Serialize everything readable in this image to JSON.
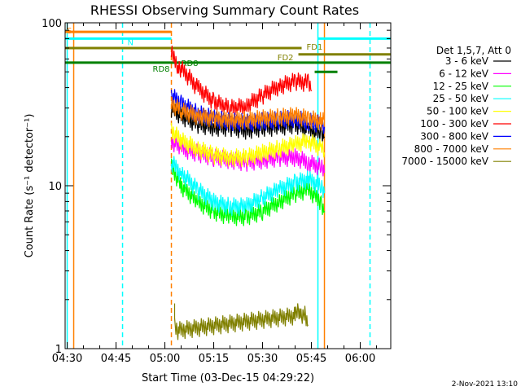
{
  "chart_data": {
    "type": "line",
    "title": "RHESSI Observing Summary Count Rates",
    "xlabel": "Start Time (03-Dec-15 04:29:22)",
    "ylabel": "Count Rate (s⁻¹ detector⁻¹)",
    "y_scale": "log",
    "ylim": [
      1,
      100
    ],
    "xlim": [
      "04:29:22",
      "06:09:22"
    ],
    "x_ticks": [
      "04:30",
      "04:45",
      "05:00",
      "05:15",
      "05:30",
      "05:45",
      "06:00"
    ],
    "y_ticks": [
      "1",
      "10",
      "100"
    ],
    "legend_header": "Det 1,5,7, Att 0",
    "legend_position": "right",
    "series": [
      {
        "name": "3 - 6 keV",
        "color": "#000000",
        "x": [
          "05:02",
          "05:05",
          "05:10",
          "05:15",
          "05:20",
          "05:25",
          "05:30",
          "05:35",
          "05:40",
          "05:44",
          "05:48",
          "05:49"
        ],
        "y": [
          30,
          27,
          24,
          23,
          23,
          22,
          23,
          23,
          24,
          22,
          21,
          20
        ]
      },
      {
        "name": "6 - 12 keV",
        "color": "#ff00ff",
        "x": [
          "05:02",
          "05:05",
          "05:10",
          "05:15",
          "05:20",
          "05:25",
          "05:30",
          "05:35",
          "05:40",
          "05:44",
          "05:48",
          "05:49"
        ],
        "y": [
          19,
          17,
          16,
          15,
          14.5,
          14,
          14.5,
          15,
          15,
          14,
          13,
          12
        ]
      },
      {
        "name": "12 - 25 keV",
        "color": "#00ff00",
        "x": [
          "05:02",
          "05:05",
          "05:10",
          "05:15",
          "05:20",
          "05:25",
          "05:30",
          "05:35",
          "05:40",
          "05:44",
          "05:48",
          "05:49"
        ],
        "y": [
          13,
          10,
          8,
          7,
          6.5,
          6.5,
          7,
          8,
          9,
          9.5,
          8,
          7
        ]
      },
      {
        "name": "25 - 50 keV",
        "color": "#00ffff",
        "x": [
          "05:02",
          "05:05",
          "05:10",
          "05:15",
          "05:20",
          "05:25",
          "05:30",
          "05:35",
          "05:40",
          "05:44",
          "05:48",
          "05:49"
        ],
        "y": [
          14,
          12,
          9.5,
          8,
          7.5,
          7.5,
          8.5,
          9.5,
          10.5,
          11,
          10,
          9
        ]
      },
      {
        "name": "50 - 100 keV",
        "color": "#ffff00",
        "x": [
          "05:02",
          "05:05",
          "05:10",
          "05:15",
          "05:20",
          "05:25",
          "05:30",
          "05:35",
          "05:40",
          "05:44",
          "05:48",
          "05:49"
        ],
        "y": [
          22,
          19,
          17,
          15.5,
          15,
          15,
          16,
          17,
          18,
          19,
          17,
          16
        ]
      },
      {
        "name": "100 - 300 keV",
        "color": "#ff0000",
        "x": [
          "05:02",
          "05:04",
          "05:10",
          "05:15",
          "05:20",
          "05:25",
          "05:30",
          "05:35",
          "05:40",
          "05:44",
          "05:45"
        ],
        "y": [
          65,
          55,
          40,
          33,
          30,
          31,
          36,
          41,
          44,
          43,
          38
        ]
      },
      {
        "name": "300 - 800 keV",
        "color": "#0000ff",
        "x": [
          "05:02",
          "05:05",
          "05:10",
          "05:15",
          "05:20",
          "05:25",
          "05:30",
          "05:35",
          "05:40",
          "05:44",
          "05:48",
          "05:49"
        ],
        "y": [
          36,
          32,
          28,
          26,
          25,
          24.5,
          25,
          25.5,
          26,
          25,
          24,
          23
        ]
      },
      {
        "name": "800 - 7000 keV",
        "color": "#ff8000",
        "x": [
          "05:02",
          "05:05",
          "05:10",
          "05:15",
          "05:20",
          "05:25",
          "05:30",
          "05:35",
          "05:40",
          "05:44",
          "05:48",
          "05:49"
        ],
        "y": [
          32,
          29,
          27,
          26,
          25.5,
          25.5,
          26,
          26.5,
          27,
          26,
          25,
          25
        ]
      },
      {
        "name": "7000 - 15000 keV",
        "color": "#808000",
        "x": [
          "05:03",
          "05:03",
          "05:04",
          "05:40",
          "05:41",
          "05:42",
          "05:43",
          "05:44"
        ],
        "y": [
          1.8,
          1.4,
          1.3,
          1.6,
          1.8,
          1.5,
          1.7,
          1.4
        ]
      }
    ],
    "flag_bars": [
      {
        "label": "S",
        "color": "#ff8000",
        "x": [
          "04:29:22",
          "05:02"
        ],
        "level": 88
      },
      {
        "label": "N",
        "color": "#00ffff",
        "x": [
          "04:29:22",
          "05:02"
        ],
        "level": 80
      },
      {
        "label": "N",
        "color": "#00ffff",
        "x": [
          "05:47",
          "06:09:22"
        ],
        "level": 80
      },
      {
        "label": "FD1",
        "color": "#808000",
        "x": [
          "04:29:22",
          "05:42"
        ],
        "level": 70
      },
      {
        "label": "FD2",
        "color": "#808000",
        "x": [
          "05:41",
          "06:09:22"
        ],
        "level": 64
      },
      {
        "label": "RD8",
        "color": "#008000",
        "x": [
          "04:29:22",
          "05:46"
        ],
        "level": 57
      },
      {
        "label": "RD8",
        "color": "#008000",
        "x": [
          "05:46",
          "06:09:22"
        ],
        "level": 57
      },
      {
        "label": "",
        "color": "#008000",
        "x": [
          "05:46",
          "05:53"
        ],
        "level": 50
      }
    ],
    "vertical_lines": [
      {
        "x": "04:30",
        "color": "#00ffff",
        "style": "solid"
      },
      {
        "x": "04:32",
        "color": "#ff8000",
        "style": "solid"
      },
      {
        "x": "04:47",
        "color": "#00ffff",
        "style": "dashed"
      },
      {
        "x": "05:02",
        "color": "#ff8000",
        "style": "dashed"
      },
      {
        "x": "05:47",
        "color": "#00ffff",
        "style": "solid"
      },
      {
        "x": "05:49",
        "color": "#ff8000",
        "style": "solid"
      },
      {
        "x": "06:03",
        "color": "#00ffff",
        "style": "dashed"
      }
    ],
    "footer_date": "2-Nov-2021 13:10"
  }
}
